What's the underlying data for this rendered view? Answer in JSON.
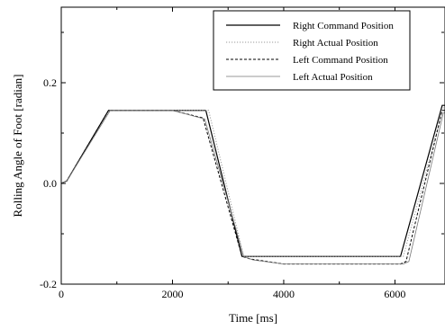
{
  "chart_data": {
    "type": "line",
    "title": "",
    "xlabel": "Time [ms]",
    "ylabel": "Rolling Angle of Foot [radian]",
    "xlim": [
      0,
      6900
    ],
    "ylim": [
      -0.2,
      0.35
    ],
    "x_ticks": [
      0,
      2000,
      4000,
      6000
    ],
    "x_tick_labels": [
      "0",
      "2000",
      "4000",
      "6000"
    ],
    "y_ticks": [
      -0.2,
      0.0,
      0.2
    ],
    "y_tick_labels": [
      "-0.2",
      "0.0",
      "0.2"
    ],
    "grid": false,
    "legend_position": "top-right",
    "series": [
      {
        "name": "Right Command Position",
        "style": "solid",
        "color": "#000000",
        "x": [
          0,
          100,
          850,
          2000,
          2600,
          3250,
          4000,
          6100,
          6850,
          6900
        ],
        "y": [
          0.0,
          0.005,
          0.145,
          0.145,
          0.145,
          -0.145,
          -0.145,
          -0.145,
          0.155,
          0.155
        ]
      },
      {
        "name": "Right Actual Position",
        "style": "dotted",
        "color": "#999999",
        "x": [
          0,
          100,
          880,
          2000,
          2650,
          3280,
          4000,
          6150,
          6870,
          6900
        ],
        "y": [
          0.0,
          0.005,
          0.145,
          0.145,
          0.145,
          -0.145,
          -0.145,
          -0.145,
          0.15,
          0.15
        ]
      },
      {
        "name": "Left Command Position",
        "style": "dashed",
        "color": "#000000",
        "x": [
          0,
          100,
          850,
          2000,
          2550,
          3250,
          3400,
          4000,
          6100,
          6200,
          6850,
          6900
        ],
        "y": [
          0.0,
          0.005,
          0.145,
          0.145,
          0.13,
          -0.145,
          -0.15,
          -0.16,
          -0.16,
          -0.155,
          0.145,
          0.145
        ]
      },
      {
        "name": "Left Actual Position",
        "style": "solid-thin",
        "color": "#777777",
        "x": [
          0,
          100,
          880,
          2000,
          2580,
          3280,
          3450,
          4000,
          6150,
          6250,
          6870,
          6900
        ],
        "y": [
          0.0,
          0.005,
          0.145,
          0.145,
          0.128,
          -0.145,
          -0.152,
          -0.16,
          -0.16,
          -0.155,
          0.14,
          0.14
        ]
      }
    ]
  }
}
